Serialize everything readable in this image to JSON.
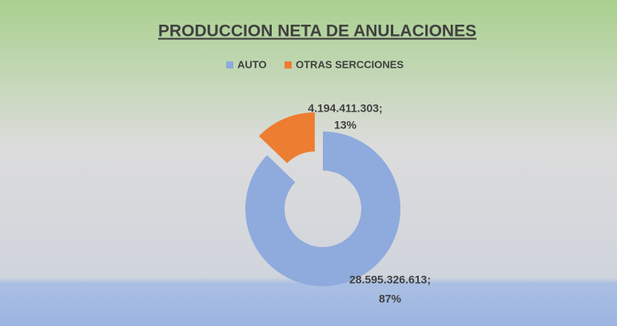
{
  "chart_data": {
    "type": "donut",
    "title": "PRODUCCION NETA DE ANULACIONES",
    "categories": [
      "AUTO",
      "OTRAS SERCCIONES"
    ],
    "values": [
      28595326613,
      4194411303
    ],
    "value_labels": [
      "28.595.326.613;",
      "4.194.411.303;"
    ],
    "percent_labels": [
      "87%",
      "13%"
    ],
    "colors": [
      "#8faadc",
      "#ed7d31"
    ],
    "legend": "top"
  }
}
